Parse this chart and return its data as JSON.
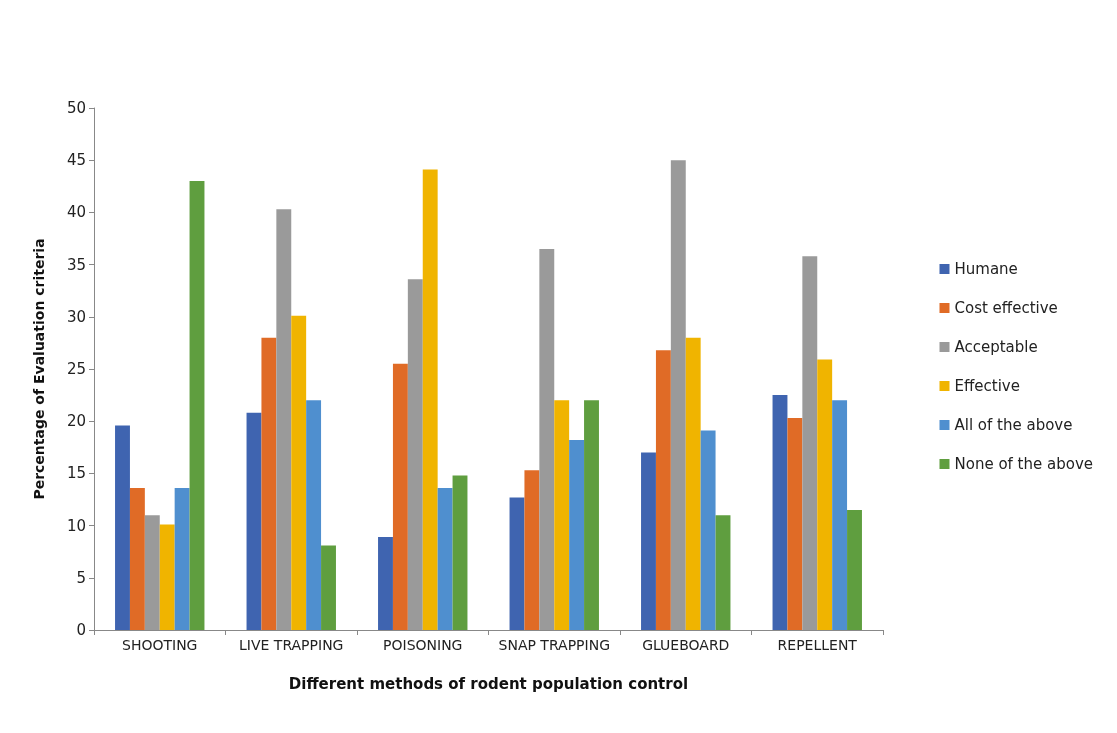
{
  "chart_data": {
    "type": "bar",
    "xlabel": "Different methods of rodent population control",
    "ylabel": "Percentage of Evaluation criteria",
    "categories": [
      "SHOOTING",
      "LIVE TRAPPING",
      "POISONING",
      "SNAP TRAPPING",
      "GLUEBOARD",
      "REPELLENT"
    ],
    "series": [
      {
        "name": "Humane",
        "color": "#3f64b0",
        "values": [
          19.6,
          20.8,
          8.9,
          12.7,
          17,
          22.5
        ]
      },
      {
        "name": "Cost effective",
        "color": "#e06b26",
        "values": [
          13.6,
          28,
          25.5,
          15.3,
          26.8,
          20.3
        ]
      },
      {
        "name": "Acceptable",
        "color": "#9a9a9a",
        "values": [
          11,
          40.3,
          33.6,
          36.5,
          45,
          35.8
        ]
      },
      {
        "name": "Effective",
        "color": "#f0b400",
        "values": [
          10.1,
          30.1,
          44.1,
          22,
          28,
          25.9
        ]
      },
      {
        "name": "All of the above",
        "color": "#4f8fcf",
        "values": [
          13.6,
          22,
          13.6,
          18.2,
          19.1,
          22
        ]
      },
      {
        "name": "None of the above",
        "color": "#5f9e3f",
        "values": [
          43,
          8.1,
          14.8,
          22,
          11,
          11.5
        ]
      }
    ],
    "ylim": [
      0,
      50
    ],
    "yticks": [
      0,
      5,
      10,
      15,
      20,
      25,
      30,
      35,
      40,
      45,
      50
    ],
    "grid": false,
    "legend": "right"
  }
}
